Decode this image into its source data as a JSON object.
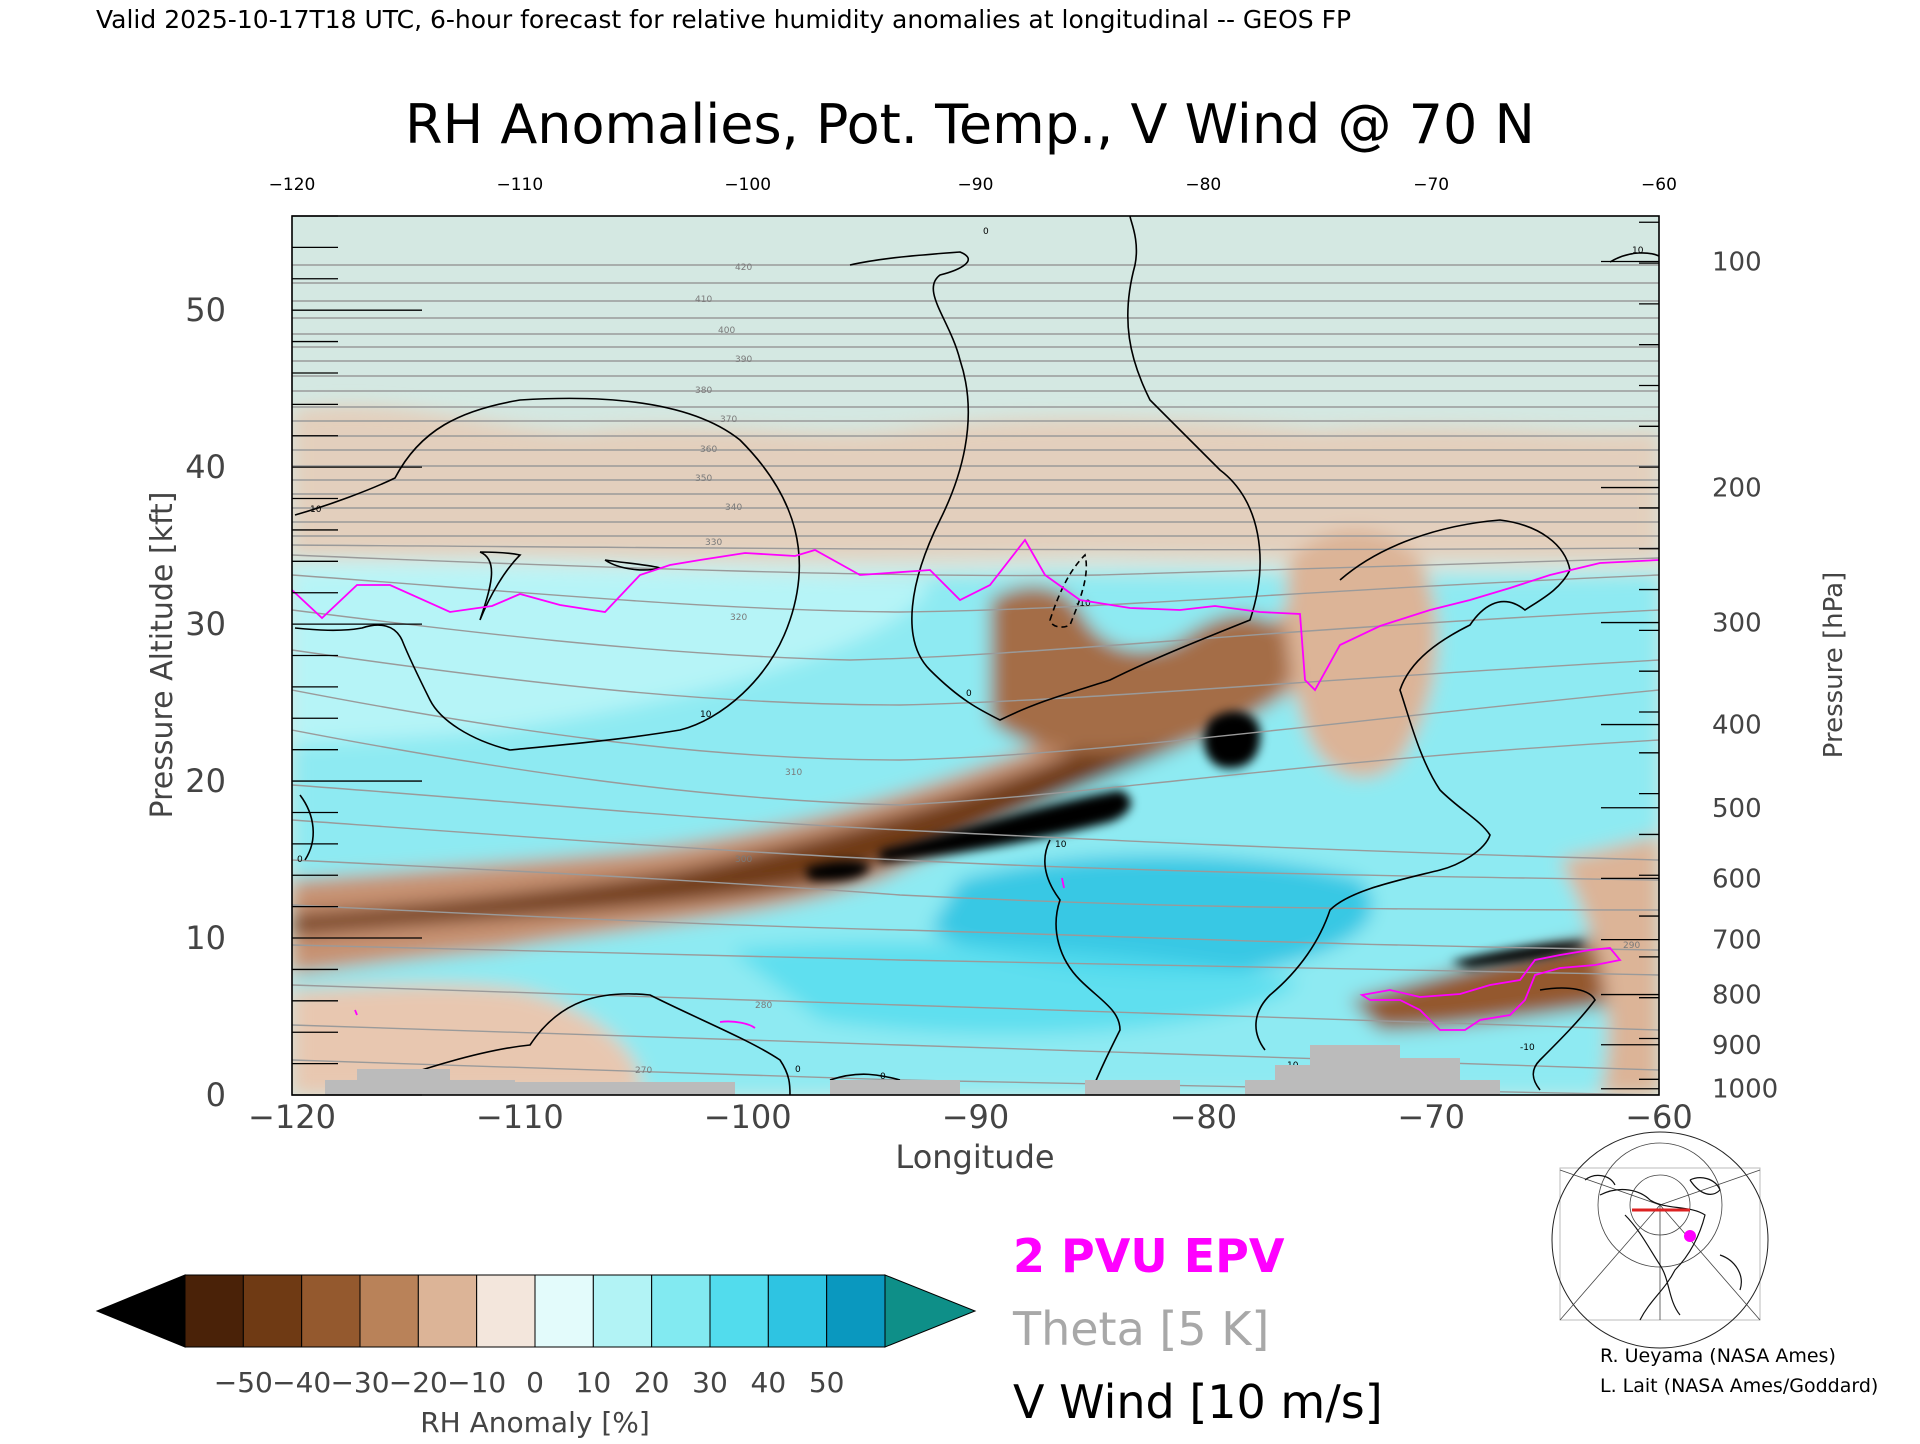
{
  "header": {
    "valid_line": "Valid 2025-10-17T18 UTC, 6-hour forecast for relative humidity anomalies at longitudinal -- GEOS FP"
  },
  "chart_data": {
    "type": "heatmap",
    "title": "RH Anomalies, Pot. Temp., V Wind @ 70 N",
    "xlabel": "Longitude",
    "ylabel_left": "Pressure Altitude [kft]",
    "ylabel_right": "Pressure [hPa]",
    "xlim": [
      -120,
      -60
    ],
    "ylim_kft": [
      0,
      56
    ],
    "x_ticks": [
      -120,
      -110,
      -100,
      -90,
      -80,
      -70,
      -60
    ],
    "x_tick_labels": [
      "−120",
      "−110",
      "−100",
      "−90",
      "−80",
      "−70",
      "−60"
    ],
    "y_ticks_kft": [
      0,
      10,
      20,
      30,
      40,
      50
    ],
    "pressure_ticks": [
      {
        "hpa": "100",
        "kft": 53.1
      },
      {
        "hpa": "200",
        "kft": 38.7
      },
      {
        "hpa": "300",
        "kft": 30.1
      },
      {
        "hpa": "400",
        "kft": 23.6
      },
      {
        "hpa": "500",
        "kft": 18.3
      },
      {
        "hpa": "600",
        "kft": 13.8
      },
      {
        "hpa": "700",
        "kft": 9.9
      },
      {
        "hpa": "800",
        "kft": 6.4
      },
      {
        "hpa": "900",
        "kft": 3.2
      },
      {
        "hpa": "1000",
        "kft": 0.4
      }
    ],
    "theta_contour_labels": [
      "270",
      "280",
      "290",
      "300",
      "310",
      "320",
      "330",
      "340",
      "350",
      "360",
      "370",
      "380",
      "390",
      "400",
      "410",
      "420"
    ],
    "vwind_contour_labels": [
      "0",
      "10",
      "-10"
    ],
    "colorbar": {
      "label": "RH Anomaly [%]",
      "tick_labels": [
        "−50",
        "−40",
        "−30",
        "−20",
        "−10",
        "0",
        "10",
        "20",
        "30",
        "40",
        "50"
      ],
      "colors": [
        "#000000",
        "#4a2208",
        "#6f3a14",
        "#94592e",
        "#b98259",
        "#dcb497",
        "#f3e6dc",
        "#e3fbfb",
        "#b2f3f5",
        "#82eaf1",
        "#52dced",
        "#2ec4e2",
        "#0a98bf",
        "#0e8f88"
      ]
    },
    "legend": {
      "epv": "2 PVU EPV",
      "theta": "Theta [5 K]",
      "vwind": "V Wind [10 m/s]",
      "epv_color": "#ff00ff",
      "theta_color": "#a0a0a0",
      "vwind_color": "#000000"
    },
    "background_color": "#d4e8e2",
    "terrain_color": "#bbbbbb"
  },
  "credits": {
    "line1": "R. Ueyama (NASA Ames)",
    "line2": "L. Lait (NASA Ames/Goddard)"
  }
}
